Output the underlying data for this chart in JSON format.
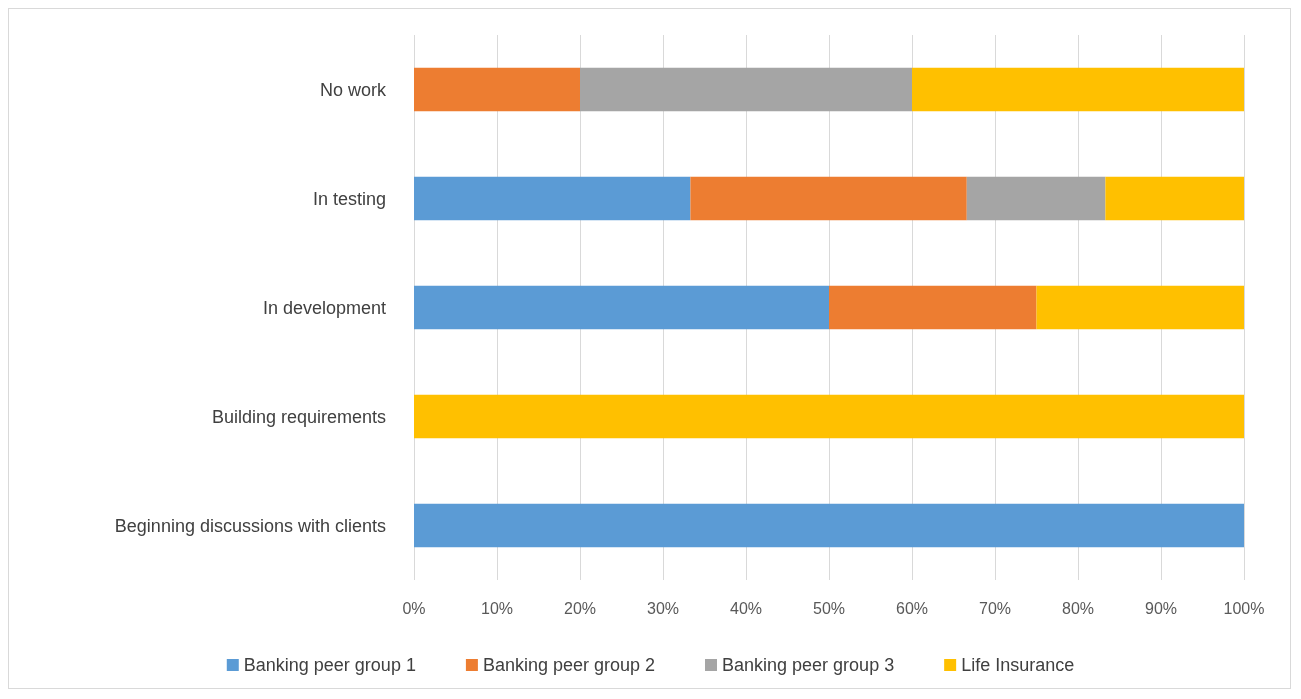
{
  "chart_data": {
    "type": "bar",
    "orientation": "horizontal",
    "stacked": true,
    "categories": [
      "No work",
      "In testing",
      "In development",
      "Building requirements",
      "Beginning discussions with clients"
    ],
    "series": [
      {
        "name": "Banking peer group 1",
        "color": "#5b9bd5",
        "values": [
          0,
          33.3,
          50,
          0,
          100
        ]
      },
      {
        "name": "Banking peer group 2",
        "color": "#ed7d31",
        "values": [
          20,
          33.3,
          25,
          0,
          0
        ]
      },
      {
        "name": "Banking peer group 3",
        "color": "#a5a5a5",
        "values": [
          40,
          16.7,
          0,
          0,
          0
        ]
      },
      {
        "name": "Life Insurance",
        "color": "#ffc000",
        "values": [
          40,
          16.7,
          25,
          100,
          0
        ]
      }
    ],
    "xlim": [
      0,
      100
    ],
    "xticks": [
      {
        "value": 0,
        "label": "0%"
      },
      {
        "value": 10,
        "label": "10%"
      },
      {
        "value": 20,
        "label": "20%"
      },
      {
        "value": 30,
        "label": "30%"
      },
      {
        "value": 40,
        "label": "40%"
      },
      {
        "value": 50,
        "label": "50%"
      },
      {
        "value": 60,
        "label": "60%"
      },
      {
        "value": 70,
        "label": "70%"
      },
      {
        "value": 80,
        "label": "80%"
      },
      {
        "value": 90,
        "label": "90%"
      },
      {
        "value": 100,
        "label": "100%"
      }
    ],
    "grid": "x",
    "legend": "bottom"
  }
}
